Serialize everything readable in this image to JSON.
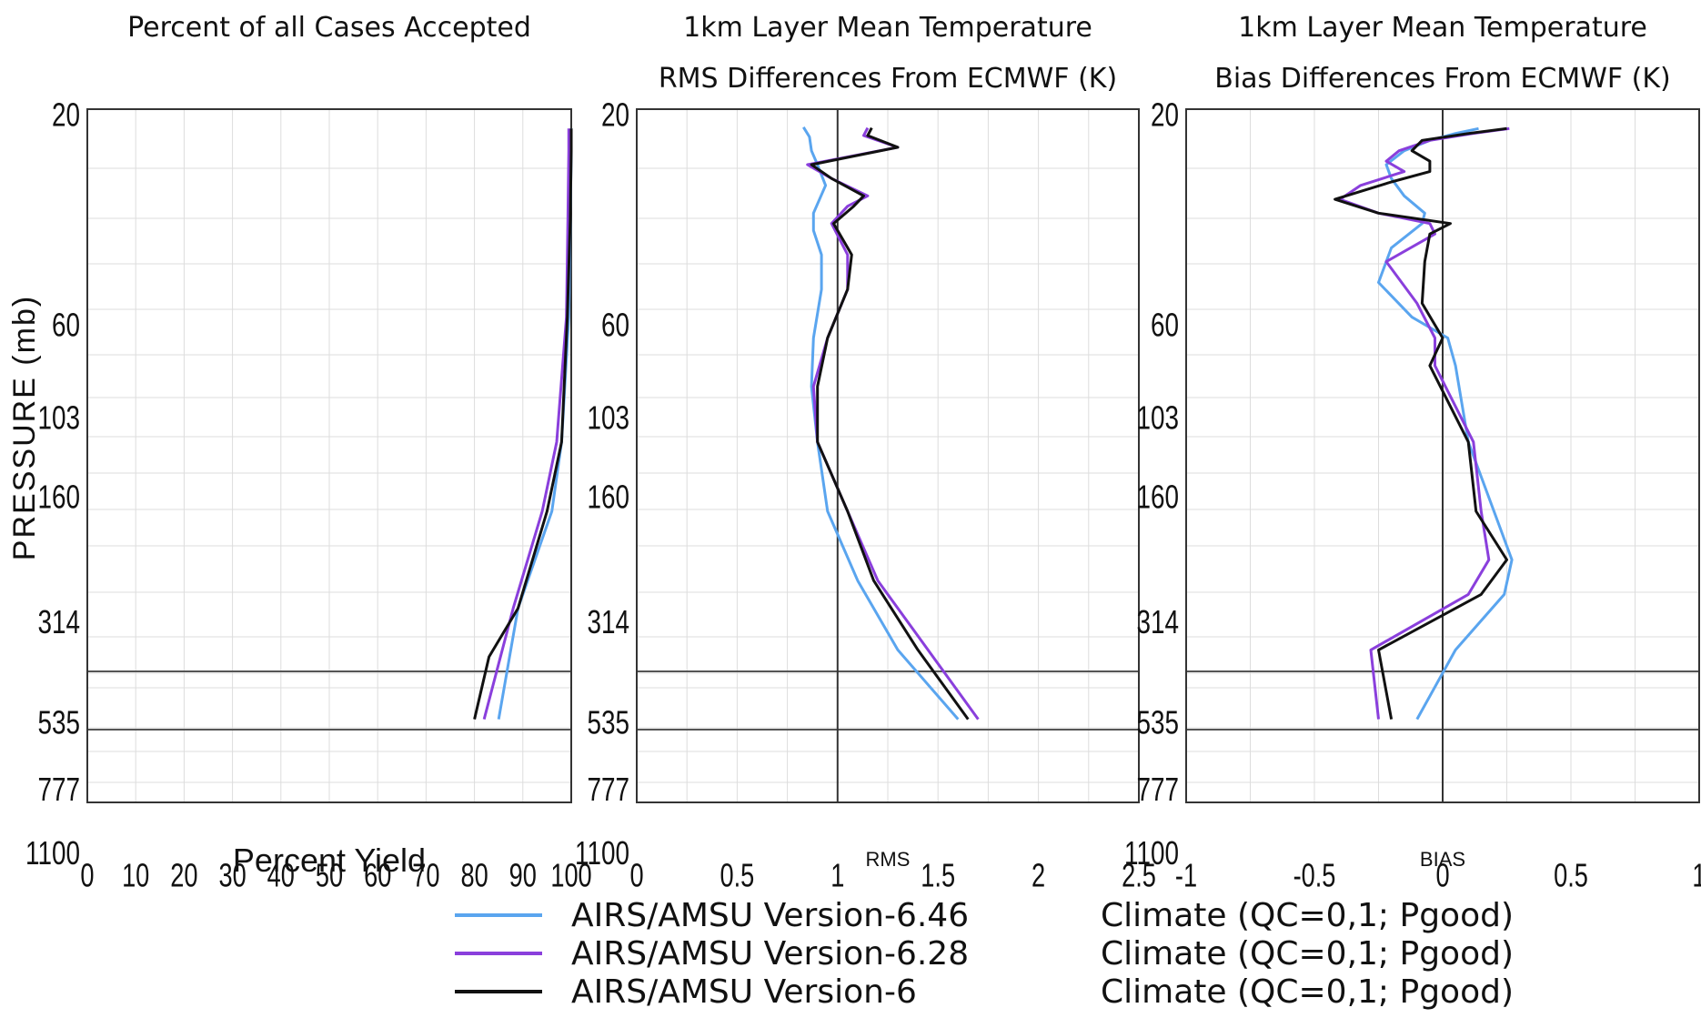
{
  "colors": {
    "v646": "#5aa5ef",
    "v628": "#8a3fdc",
    "v6": "#111111",
    "grid": "#dddddd",
    "axis": "#333333"
  },
  "legend": [
    {
      "label": "AIRS/AMSU Version-6.46",
      "desc": "Climate (QC=0,1;   Pgood)",
      "color": "#5aa5ef"
    },
    {
      "label": "AIRS/AMSU Version-6.28",
      "desc": "Climate (QC=0,1;   Pgood)",
      "color": "#8a3fdc"
    },
    {
      "label": "AIRS/AMSU Version-6",
      "desc": "Climate (QC=0,1;   Pgood)",
      "color": "#111111"
    }
  ],
  "chart_data": [
    {
      "type": "line",
      "title": [
        "Percent of all Cases Accepted"
      ],
      "xlabel": "Percent Yield",
      "ylabel": "PRESSURE (mb)",
      "y_tick_labels": [
        "20",
        "60",
        "103",
        "160",
        "314",
        "535",
        "777",
        "1100"
      ],
      "x_tick_labels": [
        "0",
        "10",
        "20",
        "30",
        "40",
        "50",
        "60",
        "70",
        "80",
        "90",
        "100"
      ],
      "xlim": [
        0,
        100
      ],
      "series": [
        {
          "name": "AIRS/AMSU Version-6.46",
          "points": [
            [
              100,
              28
            ],
            [
              100,
              60
            ],
            [
              99.8,
              160
            ],
            [
              99.5,
              300
            ],
            [
              98,
              480
            ],
            [
              96,
              580
            ],
            [
              89,
              720
            ],
            [
              85,
              880
            ]
          ]
        },
        {
          "name": "AIRS/AMSU Version-6.28",
          "points": [
            [
              99.5,
              28
            ],
            [
              99.5,
              60
            ],
            [
              99.3,
              160
            ],
            [
              99,
              300
            ],
            [
              97,
              480
            ],
            [
              94,
              580
            ],
            [
              88,
              720
            ],
            [
              82,
              880
            ]
          ]
        },
        {
          "name": "AIRS/AMSU Version-6",
          "points": [
            [
              100,
              28
            ],
            [
              100,
              60
            ],
            [
              99.8,
              160
            ],
            [
              99.2,
              300
            ],
            [
              98,
              480
            ],
            [
              95,
              580
            ],
            [
              89,
              720
            ],
            [
              83,
              790
            ],
            [
              80,
              880
            ]
          ]
        }
      ]
    },
    {
      "type": "line",
      "title": [
        "1km Layer Mean Temperature",
        "RMS Differences From ECMWF (K)"
      ],
      "xlabel": "RMS",
      "y_tick_labels": [
        "20",
        "60",
        "103",
        "160",
        "314",
        "535",
        "777",
        "1100"
      ],
      "x_tick_labels": [
        "0",
        "0.5",
        "1",
        "1.5",
        "2",
        "2.5"
      ],
      "xlim": [
        0,
        2.5
      ],
      "ref_line": 1,
      "series": [
        {
          "name": "AIRS/AMSU Version-6.46",
          "points": [
            [
              0.83,
              26
            ],
            [
              0.86,
              40
            ],
            [
              0.87,
              60
            ],
            [
              0.9,
              80
            ],
            [
              0.94,
              110
            ],
            [
              0.88,
              150
            ],
            [
              0.88,
              175
            ],
            [
              0.92,
              210
            ],
            [
              0.92,
              260
            ],
            [
              0.88,
              330
            ],
            [
              0.87,
              400
            ],
            [
              0.9,
              480
            ],
            [
              0.95,
              580
            ],
            [
              1.1,
              680
            ],
            [
              1.3,
              780
            ],
            [
              1.6,
              880
            ]
          ]
        },
        {
          "name": "AIRS/AMSU Version-6.28",
          "points": [
            [
              1.15,
              27
            ],
            [
              1.13,
              38
            ],
            [
              1.3,
              55
            ],
            [
              0.85,
              80
            ],
            [
              0.97,
              100
            ],
            [
              1.15,
              125
            ],
            [
              1.05,
              140
            ],
            [
              0.97,
              165
            ],
            [
              1.05,
              210
            ],
            [
              1.05,
              260
            ],
            [
              0.95,
              330
            ],
            [
              0.88,
              400
            ],
            [
              0.9,
              480
            ],
            [
              1.05,
              580
            ],
            [
              1.2,
              680
            ],
            [
              1.45,
              780
            ],
            [
              1.7,
              880
            ]
          ]
        },
        {
          "name": "AIRS/AMSU Version-6",
          "points": [
            [
              1.17,
              27
            ],
            [
              1.15,
              38
            ],
            [
              1.3,
              55
            ],
            [
              0.87,
              80
            ],
            [
              0.97,
              100
            ],
            [
              1.13,
              125
            ],
            [
              1.08,
              140
            ],
            [
              0.98,
              165
            ],
            [
              1.07,
              210
            ],
            [
              1.05,
              260
            ],
            [
              0.95,
              330
            ],
            [
              0.9,
              400
            ],
            [
              0.9,
              480
            ],
            [
              1.05,
              580
            ],
            [
              1.18,
              680
            ],
            [
              1.4,
              780
            ],
            [
              1.65,
              880
            ]
          ]
        }
      ]
    },
    {
      "type": "line",
      "title": [
        "1km Layer Mean Temperature",
        "Bias Differences From ECMWF (K)"
      ],
      "xlabel": "BIAS",
      "y_tick_labels": [
        "20",
        "60",
        "103",
        "160",
        "314",
        "535",
        "777",
        "1100"
      ],
      "x_tick_labels": [
        "-1",
        "-0.5",
        "0",
        "0.5",
        "1"
      ],
      "xlim": [
        -1,
        1
      ],
      "ref_line": 0,
      "series": [
        {
          "name": "AIRS/AMSU Version-6.46",
          "points": [
            [
              0.14,
              28
            ],
            [
              0.05,
              35
            ],
            [
              -0.05,
              45
            ],
            [
              -0.15,
              60
            ],
            [
              -0.22,
              80
            ],
            [
              -0.2,
              100
            ],
            [
              -0.15,
              125
            ],
            [
              -0.07,
              150
            ],
            [
              -0.08,
              165
            ],
            [
              -0.2,
              200
            ],
            [
              -0.25,
              250
            ],
            [
              -0.12,
              300
            ],
            [
              0.02,
              330
            ],
            [
              0.05,
              370
            ],
            [
              0.1,
              480
            ],
            [
              0.2,
              580
            ],
            [
              0.27,
              650
            ],
            [
              0.24,
              700
            ],
            [
              0.05,
              780
            ],
            [
              -0.1,
              880
            ]
          ]
        },
        {
          "name": "AIRS/AMSU Version-6.28",
          "points": [
            [
              0.26,
              28
            ],
            [
              0.12,
              35
            ],
            [
              -0.05,
              45
            ],
            [
              -0.17,
              60
            ],
            [
              -0.22,
              75
            ],
            [
              -0.15,
              90
            ],
            [
              -0.32,
              110
            ],
            [
              -0.4,
              130
            ],
            [
              -0.25,
              150
            ],
            [
              -0.05,
              165
            ],
            [
              -0.03,
              180
            ],
            [
              -0.22,
              220
            ],
            [
              -0.1,
              280
            ],
            [
              -0.03,
              330
            ],
            [
              -0.03,
              370
            ],
            [
              0.12,
              480
            ],
            [
              0.15,
              580
            ],
            [
              0.18,
              650
            ],
            [
              0.1,
              700
            ],
            [
              -0.28,
              780
            ],
            [
              -0.25,
              880
            ]
          ]
        },
        {
          "name": "AIRS/AMSU Version-6",
          "points": [
            [
              0.25,
              28
            ],
            [
              0.1,
              35
            ],
            [
              -0.08,
              45
            ],
            [
              -0.12,
              60
            ],
            [
              -0.05,
              75
            ],
            [
              -0.05,
              90
            ],
            [
              -0.2,
              105
            ],
            [
              -0.42,
              130
            ],
            [
              -0.25,
              150
            ],
            [
              0.03,
              165
            ],
            [
              -0.05,
              180
            ],
            [
              -0.07,
              220
            ],
            [
              -0.08,
              280
            ],
            [
              0.0,
              330
            ],
            [
              -0.05,
              370
            ],
            [
              0.1,
              480
            ],
            [
              0.13,
              580
            ],
            [
              0.25,
              650
            ],
            [
              0.15,
              700
            ],
            [
              -0.25,
              780
            ],
            [
              -0.2,
              880
            ]
          ]
        }
      ]
    }
  ]
}
